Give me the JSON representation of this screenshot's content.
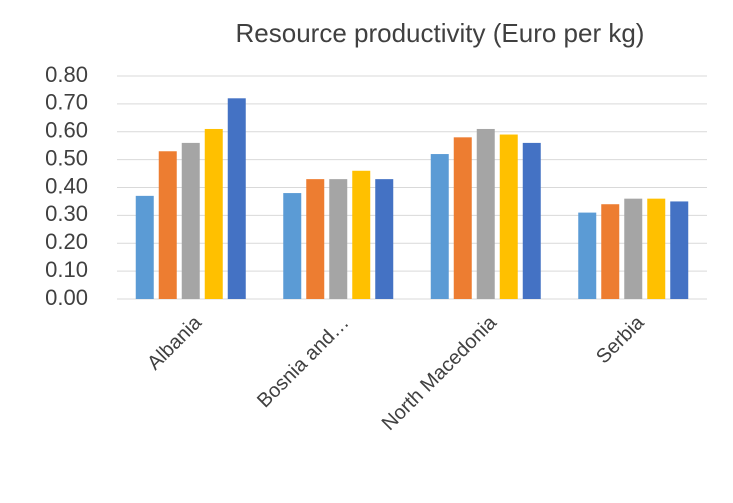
{
  "chart_data": {
    "type": "bar",
    "title": "Resource productivity (Euro per kg)",
    "categories": [
      "Albania",
      "Bosnia and…",
      "North Macedonia",
      "Serbia"
    ],
    "series": [
      {
        "color": "#5b9bd5",
        "values": [
          0.37,
          0.38,
          0.52,
          0.31
        ]
      },
      {
        "color": "#ed7d31",
        "values": [
          0.53,
          0.43,
          0.58,
          0.34
        ]
      },
      {
        "color": "#a5a5a5",
        "values": [
          0.56,
          0.43,
          0.61,
          0.36
        ]
      },
      {
        "color": "#ffc000",
        "values": [
          0.61,
          0.46,
          0.59,
          0.36
        ]
      },
      {
        "color": "#4472c4",
        "values": [
          0.72,
          0.43,
          0.56,
          0.35
        ]
      }
    ],
    "ylim": [
      0,
      0.8
    ],
    "yticks": [
      {
        "value": 0,
        "label": "0.00"
      },
      {
        "value": 0.1,
        "label": "0.10"
      },
      {
        "value": 0.2,
        "label": "0.20"
      },
      {
        "value": 0.3,
        "label": "0.30"
      },
      {
        "value": 0.4,
        "label": "0.40"
      },
      {
        "value": 0.5,
        "label": "0.50"
      },
      {
        "value": 0.6,
        "label": "0.60"
      },
      {
        "value": 0.7,
        "label": "0.70"
      },
      {
        "value": 0.8,
        "label": "0.80"
      }
    ],
    "grid": true
  }
}
